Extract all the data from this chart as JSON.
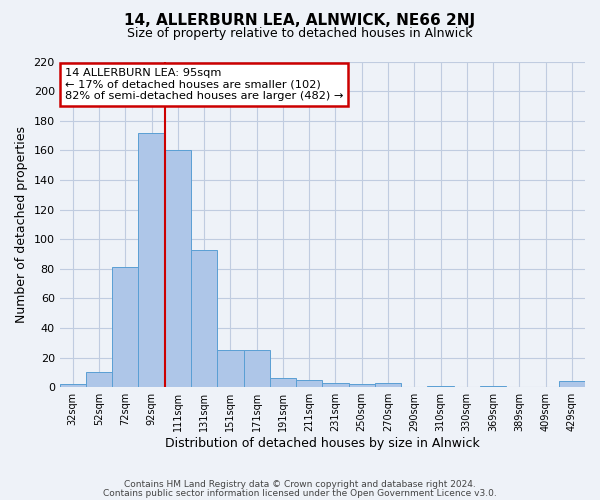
{
  "title": "14, ALLERBURN LEA, ALNWICK, NE66 2NJ",
  "subtitle": "Size of property relative to detached houses in Alnwick",
  "xlabel": "Distribution of detached houses by size in Alnwick",
  "ylabel": "Number of detached properties",
  "bin_labels": [
    "32sqm",
    "52sqm",
    "72sqm",
    "92sqm",
    "111sqm",
    "131sqm",
    "151sqm",
    "171sqm",
    "191sqm",
    "211sqm",
    "231sqm",
    "250sqm",
    "270sqm",
    "290sqm",
    "310sqm",
    "330sqm",
    "369sqm",
    "389sqm",
    "409sqm",
    "429sqm"
  ],
  "bar_values": [
    2,
    10,
    81,
    172,
    160,
    93,
    25,
    25,
    6,
    5,
    3,
    2,
    3,
    0,
    1,
    0,
    1,
    0,
    0,
    4
  ],
  "bar_color": "#aec6e8",
  "bar_edge_color": "#5a9fd4",
  "vline_x_index": 3,
  "vline_color": "#cc0000",
  "annotation_text": "14 ALLERBURN LEA: 95sqm\n← 17% of detached houses are smaller (102)\n82% of semi-detached houses are larger (482) →",
  "annotation_box_edgecolor": "#cc0000",
  "ylim": [
    0,
    220
  ],
  "yticks": [
    0,
    20,
    40,
    60,
    80,
    100,
    120,
    140,
    160,
    180,
    200,
    220
  ],
  "footer_line1": "Contains HM Land Registry data © Crown copyright and database right 2024.",
  "footer_line2": "Contains public sector information licensed under the Open Government Licence v3.0.",
  "bg_color": "#eef2f8",
  "grid_color": "#c0cce0"
}
